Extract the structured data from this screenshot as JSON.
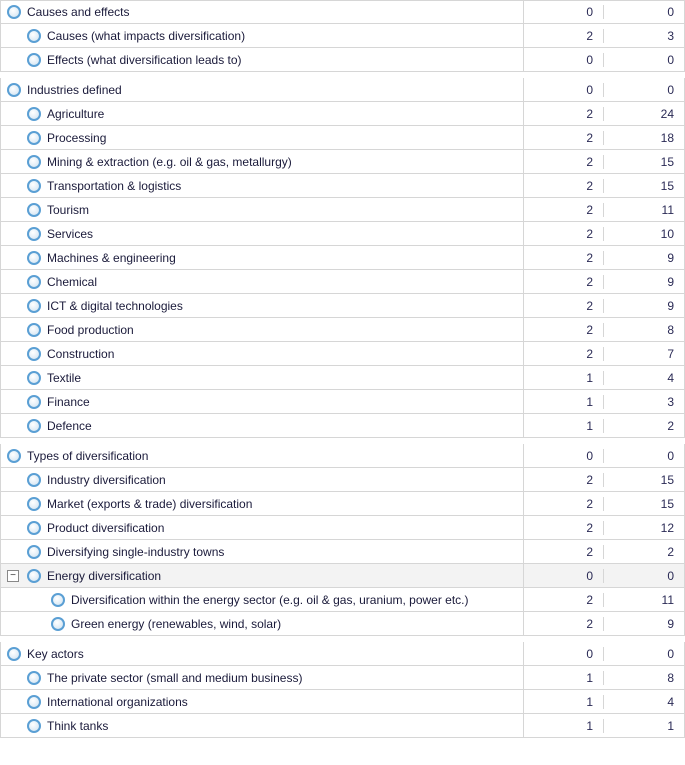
{
  "rows": [
    {
      "level": 0,
      "label": "Causes and effects",
      "c1": 0,
      "c2": 0
    },
    {
      "level": 1,
      "label": "Causes (what impacts diversification)",
      "c1": 2,
      "c2": 3
    },
    {
      "level": 1,
      "label": "Effects (what diversification leads to)",
      "c1": 0,
      "c2": 0
    },
    {
      "spacer": true
    },
    {
      "level": 0,
      "label": "Industries defined",
      "c1": 0,
      "c2": 0
    },
    {
      "level": 1,
      "label": "Agriculture",
      "c1": 2,
      "c2": 24
    },
    {
      "level": 1,
      "label": "Processing",
      "c1": 2,
      "c2": 18
    },
    {
      "level": 1,
      "label": "Mining & extraction (e.g. oil & gas, metallurgy)",
      "c1": 2,
      "c2": 15
    },
    {
      "level": 1,
      "label": "Transportation & logistics",
      "c1": 2,
      "c2": 15
    },
    {
      "level": 1,
      "label": "Tourism",
      "c1": 2,
      "c2": 11
    },
    {
      "level": 1,
      "label": "Services",
      "c1": 2,
      "c2": 10
    },
    {
      "level": 1,
      "label": "Machines & engineering",
      "c1": 2,
      "c2": 9
    },
    {
      "level": 1,
      "label": "Chemical",
      "c1": 2,
      "c2": 9
    },
    {
      "level": 1,
      "label": "ICT & digital technologies",
      "c1": 2,
      "c2": 9
    },
    {
      "level": 1,
      "label": "Food production",
      "c1": 2,
      "c2": 8
    },
    {
      "level": 1,
      "label": "Construction",
      "c1": 2,
      "c2": 7
    },
    {
      "level": 1,
      "label": "Textile",
      "c1": 1,
      "c2": 4
    },
    {
      "level": 1,
      "label": "Finance",
      "c1": 1,
      "c2": 3
    },
    {
      "level": 1,
      "label": "Defence",
      "c1": 1,
      "c2": 2
    },
    {
      "spacer": true
    },
    {
      "level": 0,
      "label": "Types of diversification",
      "c1": 0,
      "c2": 0
    },
    {
      "level": 1,
      "label": "Industry diversification",
      "c1": 2,
      "c2": 15
    },
    {
      "level": 1,
      "label": "Market (exports & trade) diversification",
      "c1": 2,
      "c2": 15
    },
    {
      "level": 1,
      "label": "Product diversification",
      "c1": 2,
      "c2": 12
    },
    {
      "level": 1,
      "label": "Diversifying single-industry towns",
      "c1": 2,
      "c2": 2
    },
    {
      "level": 1,
      "label": "Energy diversification",
      "c1": 0,
      "c2": 0,
      "expander": "−",
      "hl": true
    },
    {
      "level": 2,
      "label": "Diversification within the energy sector (e.g. oil & gas, uranium, power etc.)",
      "c1": 2,
      "c2": 11
    },
    {
      "level": 2,
      "label": "Green energy (renewables, wind, solar)",
      "c1": 2,
      "c2": 9
    },
    {
      "spacer": true
    },
    {
      "level": 0,
      "label": "Key actors",
      "c1": 0,
      "c2": 0
    },
    {
      "level": 1,
      "label": "The private sector (small and medium business)",
      "c1": 1,
      "c2": 8
    },
    {
      "level": 1,
      "label": "International organizations",
      "c1": 1,
      "c2": 4
    },
    {
      "level": 1,
      "label": "Think tanks",
      "c1": 1,
      "c2": 1
    }
  ]
}
